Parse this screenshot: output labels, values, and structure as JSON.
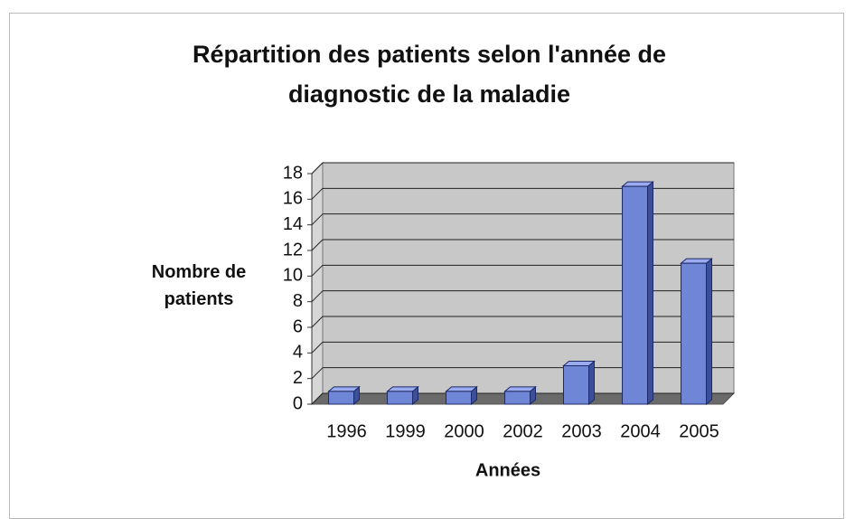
{
  "chart_data": {
    "type": "bar",
    "title": "Répartition des patients selon l'année de diagnostic de la maladie",
    "x_label": "Années",
    "y_label": "Nombre de patients",
    "categories": [
      "1996",
      "1999",
      "2000",
      "2002",
      "2003",
      "2004",
      "2005"
    ],
    "values": [
      1,
      1,
      1,
      1,
      3,
      17,
      11
    ],
    "color": "#6f86d6",
    "ylim": [
      0,
      18
    ],
    "yticks": [
      0,
      2,
      4,
      6,
      8,
      10,
      12,
      14,
      16,
      18
    ],
    "grid": true
  }
}
